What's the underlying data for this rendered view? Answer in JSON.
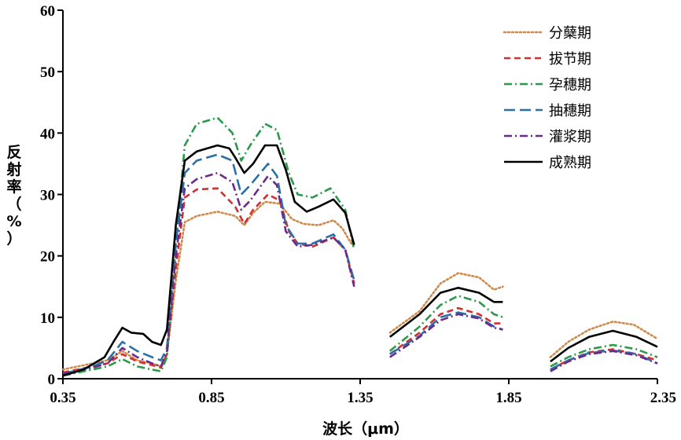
{
  "chart_data": {
    "type": "line",
    "xlabel": "波长（μm）",
    "ylabel_chars": [
      "反",
      "射",
      "率",
      "（",
      "%",
      "）"
    ],
    "xlim": [
      0.35,
      2.35
    ],
    "ylim": [
      0,
      60
    ],
    "xticks": [
      0.35,
      0.85,
      1.35,
      1.85,
      2.35
    ],
    "xtick_labels": [
      "0.35",
      "0.85",
      "1.35",
      "1.85",
      "2.35"
    ],
    "yticks": [
      0,
      10,
      20,
      30,
      40,
      50,
      60
    ],
    "ytick_labels": [
      "0",
      "10",
      "20",
      "30",
      "40",
      "50",
      "60"
    ],
    "grid": false,
    "legend_position": "top-right",
    "series": [
      {
        "name": "分蘖期",
        "color": "#d08a4a",
        "dash": "dotted",
        "segments": [
          [
            [
              0.35,
              1.5
            ],
            [
              0.45,
              2.5
            ],
            [
              0.5,
              3.0
            ],
            [
              0.55,
              4.5
            ],
            [
              0.6,
              3.0
            ],
            [
              0.65,
              2.5
            ],
            [
              0.68,
              2.0
            ],
            [
              0.7,
              4.0
            ],
            [
              0.73,
              16.0
            ],
            [
              0.76,
              25.5
            ],
            [
              0.8,
              26.5
            ],
            [
              0.87,
              27.2
            ],
            [
              0.93,
              26.5
            ],
            [
              0.96,
              25.0
            ],
            [
              0.99,
              27.0
            ],
            [
              1.03,
              28.8
            ],
            [
              1.08,
              28.5
            ],
            [
              1.12,
              26.0
            ],
            [
              1.16,
              25.2
            ],
            [
              1.21,
              25.0
            ],
            [
              1.26,
              25.8
            ],
            [
              1.29,
              24.5
            ],
            [
              1.32,
              22.0
            ]
          ],
          [
            [
              1.45,
              7.5
            ],
            [
              1.55,
              11.0
            ],
            [
              1.62,
              15.5
            ],
            [
              1.68,
              17.2
            ],
            [
              1.75,
              16.5
            ],
            [
              1.8,
              14.5
            ],
            [
              1.83,
              15.0
            ]
          ],
          [
            [
              1.99,
              3.5
            ],
            [
              2.05,
              6.0
            ],
            [
              2.12,
              8.0
            ],
            [
              2.2,
              9.3
            ],
            [
              2.27,
              8.8
            ],
            [
              2.35,
              6.5
            ]
          ]
        ]
      },
      {
        "name": "拔节期",
        "color": "#d03030",
        "dash": "dashed",
        "segments": [
          [
            [
              0.35,
              1.0
            ],
            [
              0.45,
              2.0
            ],
            [
              0.5,
              2.5
            ],
            [
              0.55,
              4.0
            ],
            [
              0.6,
              2.8
            ],
            [
              0.65,
              2.2
            ],
            [
              0.68,
              1.8
            ],
            [
              0.7,
              4.0
            ],
            [
              0.73,
              18.0
            ],
            [
              0.76,
              29.5
            ],
            [
              0.8,
              30.8
            ],
            [
              0.87,
              31.0
            ],
            [
              0.93,
              28.0
            ],
            [
              0.96,
              25.2
            ],
            [
              0.99,
              27.5
            ],
            [
              1.04,
              30.0
            ],
            [
              1.08,
              29.0
            ],
            [
              1.11,
              24.0
            ],
            [
              1.14,
              22.0
            ],
            [
              1.19,
              21.5
            ],
            [
              1.26,
              23.0
            ],
            [
              1.3,
              21.0
            ],
            [
              1.33,
              15.5
            ]
          ],
          [
            [
              1.45,
              4.0
            ],
            [
              1.55,
              7.5
            ],
            [
              1.62,
              10.5
            ],
            [
              1.68,
              11.5
            ],
            [
              1.75,
              10.5
            ],
            [
              1.8,
              9.0
            ],
            [
              1.83,
              9.0
            ]
          ],
          [
            [
              1.99,
              1.5
            ],
            [
              2.05,
              3.0
            ],
            [
              2.12,
              4.3
            ],
            [
              2.2,
              4.8
            ],
            [
              2.28,
              4.0
            ],
            [
              2.35,
              3.0
            ]
          ]
        ]
      },
      {
        "name": "孕穗期",
        "color": "#2a9a4a",
        "dash": "dashdot",
        "segments": [
          [
            [
              0.35,
              0.5
            ],
            [
              0.45,
              1.5
            ],
            [
              0.5,
              2.0
            ],
            [
              0.55,
              3.2
            ],
            [
              0.6,
              2.0
            ],
            [
              0.65,
              1.5
            ],
            [
              0.68,
              1.2
            ],
            [
              0.7,
              3.5
            ],
            [
              0.73,
              22.0
            ],
            [
              0.76,
              38.0
            ],
            [
              0.8,
              41.5
            ],
            [
              0.87,
              42.5
            ],
            [
              0.92,
              40.0
            ],
            [
              0.95,
              35.5
            ],
            [
              0.98,
              38.0
            ],
            [
              1.03,
              41.5
            ],
            [
              1.07,
              40.5
            ],
            [
              1.11,
              33.5
            ],
            [
              1.14,
              30.0
            ],
            [
              1.19,
              29.5
            ],
            [
              1.25,
              31.0
            ],
            [
              1.3,
              27.5
            ],
            [
              1.33,
              21.0
            ]
          ],
          [
            [
              1.45,
              4.5
            ],
            [
              1.55,
              8.5
            ],
            [
              1.62,
              12.0
            ],
            [
              1.68,
              13.5
            ],
            [
              1.75,
              12.5
            ],
            [
              1.8,
              10.5
            ],
            [
              1.83,
              10.0
            ]
          ],
          [
            [
              1.99,
              2.0
            ],
            [
              2.05,
              3.5
            ],
            [
              2.12,
              4.8
            ],
            [
              2.2,
              5.5
            ],
            [
              2.28,
              4.8
            ],
            [
              2.35,
              3.5
            ]
          ]
        ]
      },
      {
        "name": "抽穗期",
        "color": "#2a6fa8",
        "dash": "longdash",
        "segments": [
          [
            [
              0.35,
              0.8
            ],
            [
              0.45,
              2.0
            ],
            [
              0.5,
              3.0
            ],
            [
              0.55,
              6.0
            ],
            [
              0.6,
              4.5
            ],
            [
              0.65,
              3.5
            ],
            [
              0.68,
              3.0
            ],
            [
              0.7,
              5.0
            ],
            [
              0.73,
              22.0
            ],
            [
              0.76,
              33.5
            ],
            [
              0.8,
              35.5
            ],
            [
              0.87,
              36.5
            ],
            [
              0.92,
              35.5
            ],
            [
              0.95,
              30.0
            ],
            [
              0.98,
              31.5
            ],
            [
              1.04,
              35.0
            ],
            [
              1.07,
              33.0
            ],
            [
              1.1,
              25.0
            ],
            [
              1.14,
              22.0
            ],
            [
              1.19,
              22.0
            ],
            [
              1.26,
              23.5
            ],
            [
              1.3,
              21.0
            ],
            [
              1.33,
              16.0
            ]
          ],
          [
            [
              1.45,
              4.0
            ],
            [
              1.55,
              7.0
            ],
            [
              1.62,
              10.0
            ],
            [
              1.68,
              10.8
            ],
            [
              1.75,
              10.0
            ],
            [
              1.8,
              8.5
            ],
            [
              1.83,
              8.0
            ]
          ],
          [
            [
              1.99,
              1.5
            ],
            [
              2.05,
              3.0
            ],
            [
              2.12,
              4.2
            ],
            [
              2.2,
              4.6
            ],
            [
              2.28,
              4.0
            ],
            [
              2.35,
              2.5
            ]
          ]
        ]
      },
      {
        "name": "灌浆期",
        "color": "#6a2a8a",
        "dash": "dashdot",
        "segments": [
          [
            [
              0.35,
              0.8
            ],
            [
              0.45,
              1.8
            ],
            [
              0.5,
              2.5
            ],
            [
              0.55,
              5.0
            ],
            [
              0.6,
              3.5
            ],
            [
              0.65,
              2.5
            ],
            [
              0.68,
              2.0
            ],
            [
              0.7,
              4.5
            ],
            [
              0.73,
              20.0
            ],
            [
              0.76,
              31.0
            ],
            [
              0.8,
              32.5
            ],
            [
              0.87,
              33.5
            ],
            [
              0.92,
              32.0
            ],
            [
              0.95,
              27.5
            ],
            [
              0.98,
              29.0
            ],
            [
              1.04,
              33.0
            ],
            [
              1.07,
              31.5
            ],
            [
              1.1,
              24.0
            ],
            [
              1.14,
              21.5
            ],
            [
              1.19,
              21.8
            ],
            [
              1.26,
              23.0
            ],
            [
              1.3,
              21.0
            ],
            [
              1.33,
              15.0
            ]
          ],
          [
            [
              1.45,
              3.5
            ],
            [
              1.55,
              6.8
            ],
            [
              1.62,
              9.5
            ],
            [
              1.68,
              10.5
            ],
            [
              1.75,
              9.8
            ],
            [
              1.8,
              8.3
            ],
            [
              1.83,
              8.0
            ]
          ],
          [
            [
              1.99,
              1.2
            ],
            [
              2.05,
              2.8
            ],
            [
              2.12,
              4.0
            ],
            [
              2.2,
              4.5
            ],
            [
              2.28,
              3.8
            ],
            [
              2.35,
              2.5
            ]
          ]
        ]
      },
      {
        "name": "成熟期",
        "color": "#000000",
        "dash": "solid",
        "segments": [
          [
            [
              0.35,
              0.5
            ],
            [
              0.42,
              1.5
            ],
            [
              0.49,
              3.5
            ],
            [
              0.52,
              6.0
            ],
            [
              0.55,
              8.3
            ],
            [
              0.58,
              7.5
            ],
            [
              0.62,
              7.3
            ],
            [
              0.65,
              6.0
            ],
            [
              0.68,
              5.5
            ],
            [
              0.7,
              8.0
            ],
            [
              0.73,
              25.0
            ],
            [
              0.76,
              35.5
            ],
            [
              0.8,
              37.0
            ],
            [
              0.87,
              38.0
            ],
            [
              0.91,
              37.5
            ],
            [
              0.93,
              36.0
            ],
            [
              0.96,
              33.5
            ],
            [
              0.99,
              35.0
            ],
            [
              1.03,
              38.0
            ],
            [
              1.07,
              38.0
            ],
            [
              1.1,
              34.0
            ],
            [
              1.13,
              28.8
            ],
            [
              1.17,
              27.2
            ],
            [
              1.21,
              28.0
            ],
            [
              1.26,
              29.2
            ],
            [
              1.3,
              27.0
            ],
            [
              1.33,
              21.8
            ]
          ],
          [
            [
              1.45,
              6.8
            ],
            [
              1.55,
              10.5
            ],
            [
              1.62,
              14.0
            ],
            [
              1.68,
              14.8
            ],
            [
              1.75,
              14.0
            ],
            [
              1.8,
              12.5
            ],
            [
              1.83,
              12.5
            ]
          ],
          [
            [
              1.99,
              2.8
            ],
            [
              2.05,
              5.0
            ],
            [
              2.12,
              6.8
            ],
            [
              2.2,
              7.8
            ],
            [
              2.28,
              6.8
            ],
            [
              2.35,
              5.2
            ]
          ]
        ]
      }
    ]
  }
}
